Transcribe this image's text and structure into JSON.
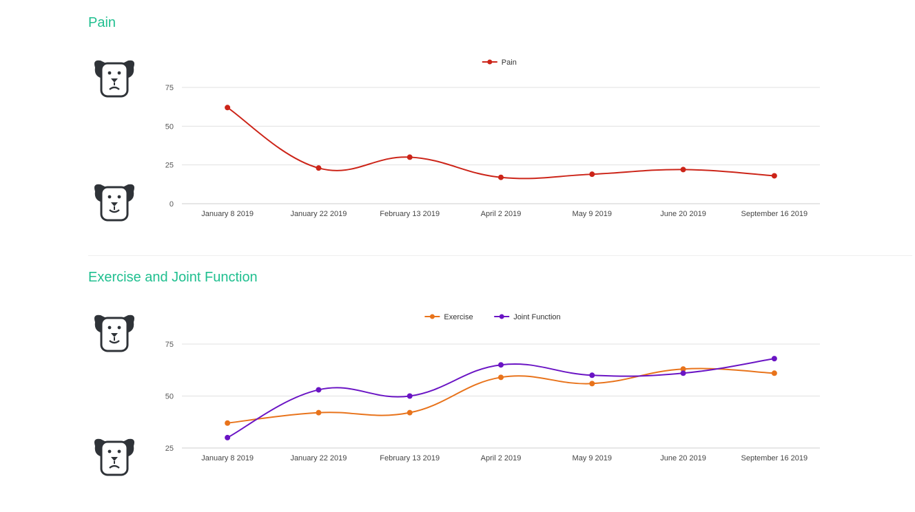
{
  "accent_color": "#1fbf8f",
  "sections": [
    {
      "title": "Pain"
    },
    {
      "title": "Exercise and Joint Function"
    }
  ],
  "icons": {
    "sad_dog": "sad-dog-icon",
    "happy_dog": "happy-dog-icon"
  },
  "chart_data": [
    {
      "type": "line",
      "title": "Pain",
      "categories": [
        "January 8 2019",
        "January 22 2019",
        "February 13 2019",
        "April 2 2019",
        "May 9 2019",
        "June 20 2019",
        "September 16 2019"
      ],
      "yticks": [
        0,
        25,
        50,
        75
      ],
      "ylim": [
        0,
        75
      ],
      "grid": true,
      "legend": "top-center",
      "series": [
        {
          "name": "Pain",
          "color": "#cc2418",
          "values": [
            62,
            23,
            30,
            17,
            19,
            22,
            18
          ]
        }
      ]
    },
    {
      "type": "line",
      "title": "Exercise and Joint Function",
      "categories": [
        "January 8 2019",
        "January 22 2019",
        "February 13 2019",
        "April 2 2019",
        "May 9 2019",
        "June 20 2019",
        "September 16 2019"
      ],
      "yticks": [
        25,
        50,
        75
      ],
      "ylim": [
        25,
        75
      ],
      "grid": true,
      "legend": "top-center",
      "series": [
        {
          "name": "Exercise",
          "color": "#e8731b",
          "values": [
            37,
            42,
            42,
            59,
            56,
            63,
            61
          ]
        },
        {
          "name": "Joint Function",
          "color": "#6a14c4",
          "values": [
            30,
            53,
            50,
            65,
            60,
            61,
            68
          ]
        }
      ]
    }
  ]
}
